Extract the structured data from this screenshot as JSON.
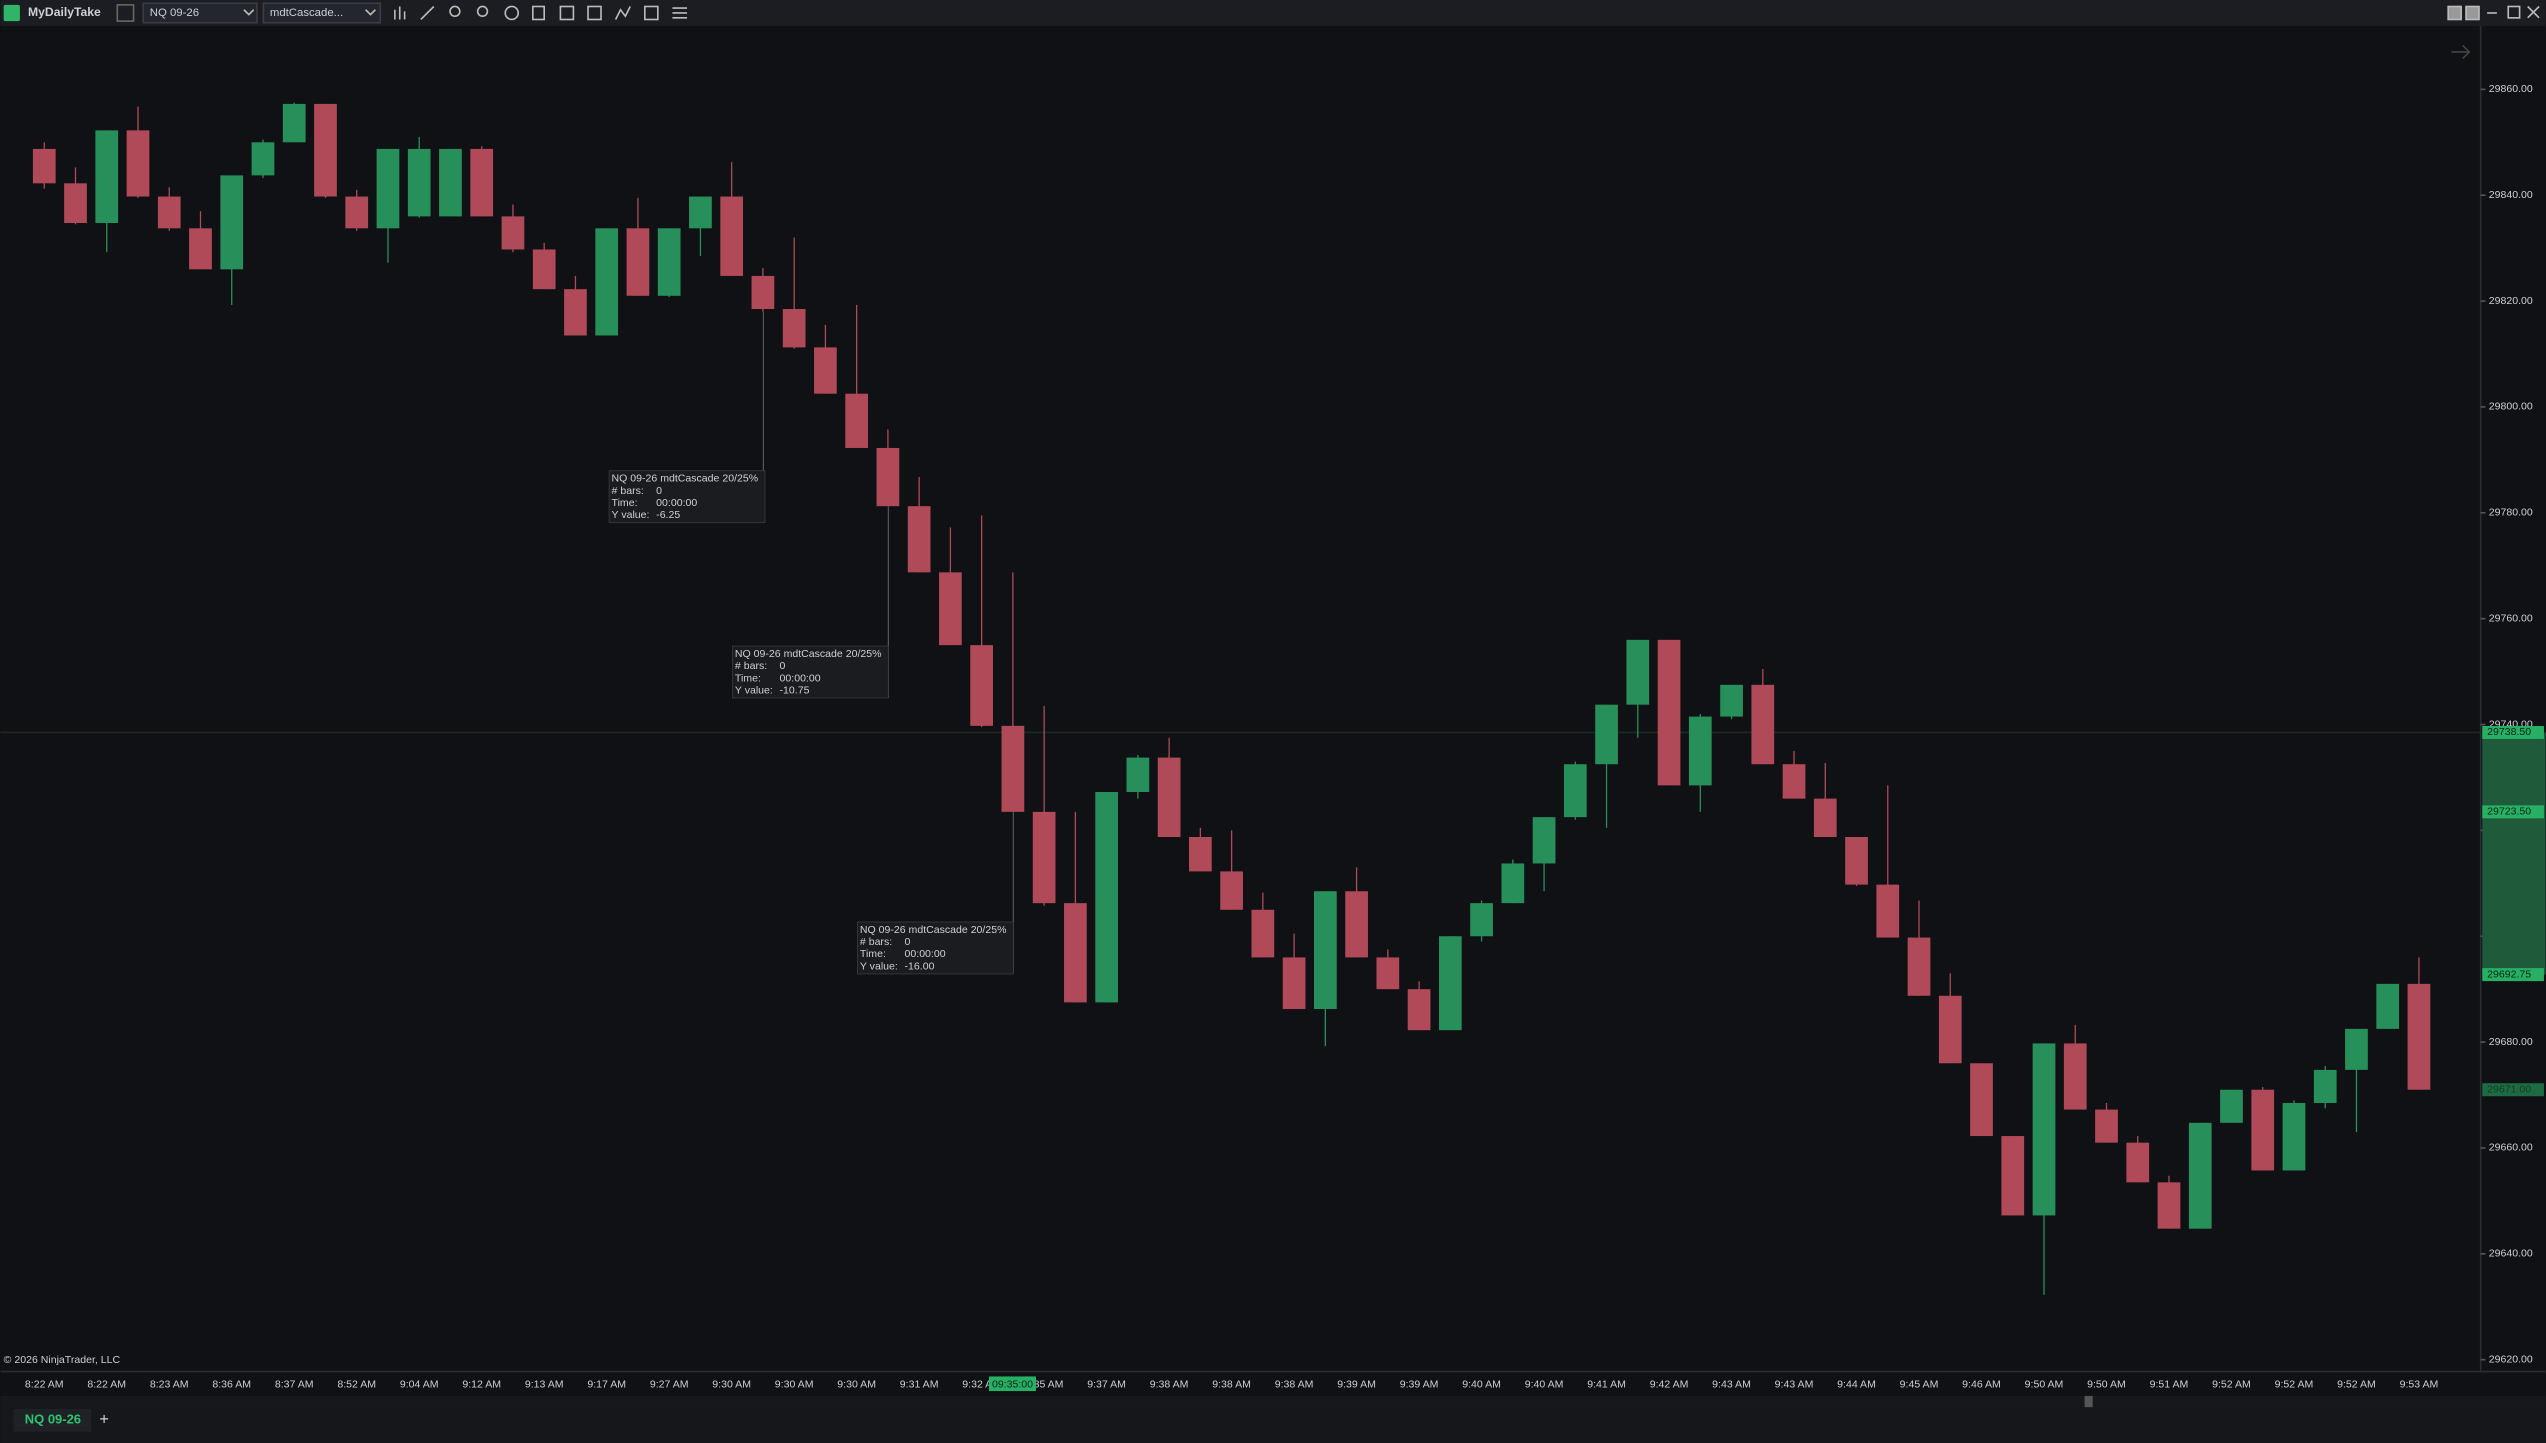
{
  "app": {
    "brand": "MyDailyTake",
    "instrument": "NQ 09-26",
    "template": "mdtCascade...",
    "copyright": "© 2026 NinjaTrader, LLC",
    "tab": "NQ 09-26",
    "tab_add": "+"
  },
  "chart_data": {
    "type": "candlestick",
    "categories": [
      "8:22 AM",
      null,
      "8:22 AM",
      null,
      "8:23 AM",
      null,
      "8:36 AM",
      null,
      "8:37 AM",
      null,
      "8:52 AM",
      null,
      "9:04 AM",
      null,
      "9:12 AM",
      null,
      "9:13 AM",
      null,
      "9:17 AM",
      null,
      "9:27 AM",
      null,
      "9:30 AM",
      null,
      "9:30 AM",
      null,
      "9:30 AM",
      null,
      "9:31 AM",
      null,
      "9:32 AM",
      null,
      "9:35 AM",
      null,
      "9:37 AM",
      null,
      "9:38 AM",
      null,
      "9:38 AM",
      null,
      "9:38 AM",
      null,
      "9:39 AM",
      null,
      "9:39 AM",
      null,
      "9:40 AM",
      null,
      "9:40 AM",
      null,
      "9:41 AM",
      null,
      "9:42 AM",
      null,
      "9:43 AM",
      null,
      "9:43 AM",
      null,
      "9:44 AM",
      null,
      "9:45 AM",
      null,
      "9:46 AM",
      null,
      "9:50 AM",
      null,
      "9:50 AM",
      null,
      "9:51 AM",
      null,
      "9:52 AM",
      null,
      "9:52 AM",
      null,
      "9:52 AM",
      null,
      "9:53 AM"
    ],
    "open": [
      29848.75,
      29842.25,
      29834.75,
      29852.25,
      29839.75,
      29833.75,
      29826.0,
      29843.75,
      29850.0,
      29857.25,
      29839.75,
      29833.75,
      29836.0,
      29836.0,
      29848.75,
      29836.0,
      29829.75,
      29822.25,
      29813.5,
      29833.75,
      29821.0,
      29833.75,
      29839.75,
      29824.75,
      29818.5,
      29811.25,
      29802.5,
      29792.25,
      29781.25,
      29768.75,
      29755.0,
      29739.75,
      29723.5,
      29706.25,
      29687.5,
      29727.25,
      29733.75,
      29718.75,
      29712.25,
      29705.0,
      29696.0,
      29686.25,
      29708.5,
      29696.0,
      29690.0,
      29682.25,
      29700.0,
      29706.25,
      29713.75,
      29722.5,
      29732.5,
      29743.75,
      29756.0,
      29728.5,
      29741.5,
      29747.5,
      29732.5,
      29726.0,
      29718.75,
      29709.75,
      29699.75,
      29688.75,
      29676.0,
      29662.25,
      29647.25,
      29679.75,
      29667.25,
      29661.0,
      29653.5,
      29644.75,
      29664.75,
      29671.0,
      29655.75,
      29668.5,
      29674.75,
      29682.5,
      29691.0
    ],
    "high": [
      29850.0,
      29845.25,
      29852.25,
      29856.75,
      29841.5,
      29837.0,
      29843.75,
      29850.5,
      29857.5,
      29857.25,
      29841.0,
      29848.75,
      29851.0,
      29848.75,
      29849.25,
      29838.25,
      29831.0,
      29824.75,
      29833.75,
      29839.5,
      29833.75,
      29839.75,
      29846.25,
      29826.25,
      29832.0,
      29815.5,
      29819.25,
      29795.75,
      29786.75,
      29777.25,
      29779.5,
      29768.75,
      29743.5,
      29723.5,
      29727.25,
      29734.25,
      29737.5,
      29720.5,
      29720.0,
      29708.25,
      29700.5,
      29708.5,
      29713.0,
      29697.5,
      29691.5,
      29700.0,
      29706.75,
      29714.5,
      29722.5,
      29733.0,
      29743.75,
      29756.0,
      29756.0,
      29742.0,
      29747.5,
      29750.5,
      29735.0,
      29732.75,
      29718.75,
      29728.5,
      29706.75,
      29693.0,
      29676.0,
      29662.25,
      29679.75,
      29683.25,
      29668.5,
      29662.25,
      29654.75,
      29664.75,
      29671.0,
      29671.5,
      29669.0,
      29675.5,
      29682.5,
      29691.0,
      29696.0
    ],
    "low": [
      29841.25,
      29834.5,
      29829.25,
      29839.5,
      29833.25,
      29826.0,
      29819.25,
      29843.25,
      29850.0,
      29839.5,
      29833.25,
      29827.25,
      29835.75,
      29836.0,
      29836.0,
      29829.25,
      29822.25,
      29813.5,
      29813.5,
      29821.0,
      29820.75,
      29828.5,
      29824.75,
      29818.0,
      29811.0,
      29802.5,
      29792.25,
      29781.25,
      29768.75,
      29755.0,
      29739.5,
      29723.5,
      29705.75,
      29687.5,
      29687.5,
      29726.0,
      29718.75,
      29712.25,
      29705.0,
      29696.0,
      29686.25,
      29679.25,
      29696.0,
      29690.0,
      29682.25,
      29682.25,
      29699.0,
      29706.25,
      29708.5,
      29722.0,
      29720.5,
      29737.5,
      29728.5,
      29723.5,
      29741.0,
      29732.5,
      29726.0,
      29718.75,
      29709.5,
      29699.75,
      29688.75,
      29676.0,
      29662.25,
      29647.25,
      29632.25,
      29667.25,
      29661.0,
      29653.5,
      29644.75,
      29644.75,
      29664.75,
      29655.75,
      29655.75,
      29667.5,
      29663.0,
      29682.5,
      29671.0
    ],
    "close": [
      29842.25,
      29834.75,
      29852.25,
      29839.75,
      29833.75,
      29826.0,
      29843.75,
      29850.0,
      29857.25,
      29839.75,
      29833.75,
      29848.75,
      29848.75,
      29848.75,
      29836.0,
      29829.75,
      29822.25,
      29813.5,
      29833.75,
      29821.0,
      29833.75,
      29839.75,
      29824.75,
      29818.5,
      29811.25,
      29802.5,
      29792.25,
      29781.25,
      29768.75,
      29755.0,
      29739.75,
      29723.5,
      29706.25,
      29687.5,
      29727.25,
      29733.75,
      29718.75,
      29712.25,
      29705.0,
      29696.0,
      29686.25,
      29708.5,
      29696.0,
      29690.0,
      29682.25,
      29700.0,
      29706.25,
      29713.75,
      29722.5,
      29732.5,
      29743.75,
      29756.0,
      29728.5,
      29741.5,
      29747.5,
      29732.5,
      29726.0,
      29718.75,
      29709.75,
      29699.75,
      29688.75,
      29676.0,
      29662.25,
      29647.25,
      29679.75,
      29667.25,
      29661.0,
      29653.5,
      29644.75,
      29664.75,
      29671.0,
      29655.75,
      29668.5,
      29674.75,
      29682.5,
      29691.0,
      29671.0
    ],
    "up_color": "#27905a",
    "down_color": "#b04a59",
    "ylim": [
      29617.75,
      29870.75
    ],
    "yticks": [
      {
        "value": 29620,
        "label": "29620.00"
      },
      {
        "value": 29640,
        "label": "29640.00"
      },
      {
        "value": 29660,
        "label": "29660.00"
      },
      {
        "value": 29680,
        "label": "29680.00"
      },
      {
        "value": 29700,
        "label": "29700.00"
      },
      {
        "value": 29720,
        "label": "29720.00"
      },
      {
        "value": 29740,
        "label": "29740.00"
      },
      {
        "value": 29760,
        "label": "29760.00"
      },
      {
        "value": 29780,
        "label": "29780.00"
      },
      {
        "value": 29800,
        "label": "29800.00"
      },
      {
        "value": 29820,
        "label": "29820.00"
      },
      {
        "value": 29840,
        "label": "29840.00"
      },
      {
        "value": 29860,
        "label": "29860.00"
      }
    ],
    "price_markers": [
      {
        "value": 29738.5,
        "label": "29738.50"
      },
      {
        "value": 29723.5,
        "label": "29723.50"
      },
      {
        "value": 29692.75,
        "label": "29692.75"
      },
      {
        "value": 29671.0,
        "label": "29671.00"
      }
    ],
    "crosshair_time": "09:35:00",
    "annotations": [
      {
        "title": "NQ 09-26 mdtCascade 20/25%",
        "rows": [
          [
            "# bars:",
            "0"
          ],
          [
            "Time:",
            "00:00:00"
          ],
          [
            "Y value:",
            "-6.25"
          ]
        ]
      },
      {
        "title": "NQ 09-26 mdtCascade 20/25%",
        "rows": [
          [
            "# bars:",
            "0"
          ],
          [
            "Time:",
            "00:00:00"
          ],
          [
            "Y value:",
            "-10.75"
          ]
        ]
      },
      {
        "title": "NQ 09-26 mdtCascade 20/25%",
        "rows": [
          [
            "# bars:",
            "0"
          ],
          [
            "Time:",
            "00:00:00"
          ],
          [
            "Y value:",
            "-16.00"
          ]
        ]
      }
    ]
  }
}
